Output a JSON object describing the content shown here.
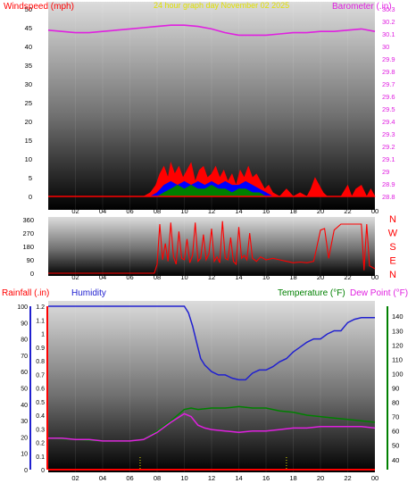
{
  "colors": {
    "wind_gust": "#ff0000",
    "wind_avg": "#0000ff",
    "wind_min": "#008000",
    "barometer": "#e020e0",
    "direction": "#ff0000",
    "rainfall": "#ff0000",
    "humidity": "#2020d0",
    "temperature": "#008000",
    "dew_point": "#e020e0",
    "rain_marks": "#e0e000",
    "top_label_red": "#ff0000",
    "title_yellow": "#e0e000"
  },
  "chart_data": [
    {
      "type": "area",
      "title": "24 hour graph day  November 02 2025",
      "ylabel_left": "Windspeed (mph)",
      "ylabel_right": "Barometer (.in)",
      "x_ticks": [
        "02",
        "04",
        "06",
        "08",
        "10",
        "12",
        "14",
        "16",
        "18",
        "20",
        "22",
        "00"
      ],
      "x_range_hours": [
        0,
        24
      ],
      "y_left_ticks": [
        "0",
        "5",
        "10",
        "15",
        "20",
        "25",
        "30",
        "35",
        "40",
        "45",
        "50"
      ],
      "ylim_left": [
        0,
        50
      ],
      "y_right_ticks": [
        "28.8",
        "28.9",
        "29",
        "29.1",
        "29.2",
        "29.3",
        "29.4",
        "29.5",
        "29.6",
        "29.7",
        "29.8",
        "29.9",
        "30",
        "30.1",
        "30.2",
        "30.3"
      ],
      "ylim_right": [
        28.8,
        30.3
      ],
      "series": [
        {
          "name": "Windspeed",
          "role": "gust",
          "hours": [
            0,
            7,
            7.5,
            7.9,
            8.2,
            8.5,
            8.8,
            9,
            9.3,
            9.6,
            9.9,
            10.2,
            10.5,
            10.8,
            11.1,
            11.4,
            11.7,
            12,
            12.3,
            12.6,
            12.9,
            13.2,
            13.5,
            13.8,
            14.1,
            14.4,
            14.7,
            15,
            15.3,
            15.6,
            15.9,
            16.2,
            16.5,
            17,
            17.5,
            18,
            18.5,
            19,
            19.3,
            19.6,
            19.9,
            20.2,
            20.5,
            21,
            21.5,
            22,
            22.3,
            22.6,
            23,
            23.4,
            23.7,
            24
          ],
          "values": [
            0,
            0,
            1,
            3,
            6,
            8,
            5,
            9,
            6,
            8,
            5,
            7,
            9,
            4,
            7,
            8,
            5,
            6,
            8,
            5,
            7,
            4,
            6,
            3,
            7,
            5,
            8,
            5,
            6,
            4,
            2,
            3,
            1,
            0,
            2,
            0,
            1,
            0,
            2,
            5,
            3,
            1,
            0,
            0,
            0,
            3,
            0,
            2,
            3,
            0,
            2,
            0
          ]
        },
        {
          "name": "Windspeed",
          "role": "average",
          "hours": [
            0,
            7.5,
            8,
            8.5,
            9,
            9.5,
            10,
            10.5,
            11,
            11.5,
            12,
            12.5,
            13,
            13.5,
            14,
            14.5,
            15,
            15.5,
            16,
            16.5,
            17,
            24
          ],
          "values": [
            0,
            0,
            1,
            3,
            4,
            3,
            4,
            3,
            4,
            3,
            4,
            3,
            4,
            3,
            3,
            4,
            3,
            2,
            1,
            0,
            0,
            0
          ]
        },
        {
          "name": "Windspeed",
          "role": "minimum",
          "hours": [
            0,
            8,
            8.5,
            9,
            9.5,
            10,
            10.5,
            11,
            11.5,
            12,
            12.5,
            13,
            13.5,
            14,
            14.5,
            15,
            15.5,
            16,
            16.5,
            24
          ],
          "values": [
            0,
            0,
            1,
            2,
            3,
            2,
            3,
            2,
            2,
            3,
            2,
            2,
            1,
            2,
            2,
            1,
            1,
            0,
            0,
            0
          ]
        },
        {
          "name": "Barometer",
          "axis": "right",
          "hours": [
            0,
            1,
            2,
            3,
            4,
            5,
            6,
            7,
            8,
            9,
            10,
            11,
            12,
            13,
            14,
            15,
            16,
            17,
            18,
            19,
            20,
            21,
            22,
            23,
            24
          ],
          "values": [
            30.13,
            30.12,
            30.11,
            30.11,
            30.12,
            30.13,
            30.14,
            30.15,
            30.16,
            30.17,
            30.17,
            30.16,
            30.14,
            30.11,
            30.09,
            30.09,
            30.09,
            30.1,
            30.11,
            30.11,
            30.12,
            30.12,
            30.13,
            30.14,
            30.12
          ]
        }
      ]
    },
    {
      "type": "line",
      "ylabel_right": "N W S E N",
      "direction_letters": [
        "N",
        "W",
        "S",
        "E",
        "N"
      ],
      "y_ticks": [
        "0",
        "90",
        "180",
        "270",
        "360"
      ],
      "ylim": [
        0,
        360
      ],
      "x_ticks": [
        "02",
        "04",
        "06",
        "08",
        "10",
        "12",
        "14",
        "16",
        "18",
        "20",
        "22",
        "00"
      ],
      "series": [
        {
          "name": "Wind direction",
          "hours": [
            0,
            7.8,
            8,
            8.2,
            8.4,
            8.6,
            8.8,
            9,
            9.2,
            9.4,
            9.6,
            9.8,
            10,
            10.2,
            10.4,
            10.6,
            10.8,
            11,
            11.2,
            11.4,
            11.6,
            11.8,
            12,
            12.2,
            12.4,
            12.6,
            12.8,
            13,
            13.2,
            13.4,
            13.6,
            13.8,
            14,
            14.2,
            14.4,
            14.6,
            14.8,
            15,
            15.3,
            15.6,
            16,
            16.5,
            17,
            17.5,
            18,
            18.5,
            19,
            19.5,
            20,
            20.3,
            20.6,
            21,
            21.5,
            22,
            22.5,
            23,
            23.2,
            23.4,
            23.6,
            24
          ],
          "values": [
            0,
            0,
            60,
            330,
            90,
            200,
            80,
            340,
            110,
            60,
            280,
            100,
            90,
            230,
            70,
            120,
            340,
            80,
            100,
            260,
            90,
            130,
            300,
            80,
            110,
            70,
            350,
            100,
            90,
            240,
            80,
            60,
            310,
            100,
            120,
            90,
            270,
            100,
            80,
            110,
            90,
            100,
            90,
            80,
            70,
            75,
            70,
            80,
            290,
            300,
            100,
            290,
            330,
            330,
            330,
            330,
            20,
            330,
            50,
            30
          ]
        }
      ]
    },
    {
      "type": "line",
      "ylabel_left": "Rainfall (.in)",
      "ylabel_humidity": "Humidity",
      "ylabel_right": "Temperature (°F)",
      "ylabel_right2": "Dew Point (°F)",
      "x_ticks": [
        "02",
        "04",
        "06",
        "08",
        "10",
        "12",
        "14",
        "16",
        "18",
        "20",
        "22",
        "00"
      ],
      "humidity_ticks": [
        "0",
        "10",
        "20",
        "30",
        "40",
        "50",
        "60",
        "70",
        "80",
        "90",
        "100"
      ],
      "ylim_humidity": [
        0,
        100
      ],
      "rain_ticks": [
        "0",
        "0.1",
        "0.2",
        "0.3",
        "0.4",
        "0.5",
        "0.6",
        "0.7",
        "0.8",
        "0.9",
        "1",
        "1.1",
        "1.2"
      ],
      "ylim_rain": [
        0,
        1.2
      ],
      "temp_ticks": [
        "40",
        "50",
        "60",
        "70",
        "80",
        "90",
        "100",
        "110",
        "120",
        "130",
        "140"
      ],
      "ylim_temp": [
        33,
        147
      ],
      "rain_markers_hours": [
        6.75,
        17.5
      ],
      "series": [
        {
          "name": "Humidity",
          "axis": "humidity",
          "hours": [
            0,
            2,
            4,
            6,
            8,
            9,
            10,
            10.3,
            10.6,
            10.9,
            11.2,
            11.5,
            12,
            12.5,
            13,
            13.5,
            14,
            14.5,
            15,
            15.5,
            16,
            16.5,
            17,
            17.5,
            18,
            18.5,
            19,
            19.5,
            20,
            20.5,
            21,
            21.5,
            22,
            22.5,
            23,
            23.5,
            24
          ],
          "values": [
            100,
            100,
            100,
            100,
            100,
            100,
            100,
            96,
            88,
            78,
            68,
            64,
            60,
            58,
            58,
            56,
            55,
            55,
            59,
            61,
            61,
            63,
            66,
            68,
            72,
            75,
            78,
            80,
            80,
            83,
            85,
            85,
            90,
            92,
            93,
            93,
            93
          ]
        },
        {
          "name": "Rainfall",
          "axis": "rain",
          "hours": [
            0,
            24
          ],
          "values": [
            0,
            0
          ]
        },
        {
          "name": "Temperature",
          "axis": "temp",
          "hours": [
            0,
            2,
            4,
            6,
            7,
            8,
            9,
            10,
            10.5,
            11,
            12,
            13,
            14,
            15,
            16,
            17,
            18,
            19,
            20,
            21,
            22,
            23,
            24
          ],
          "values": [
            55,
            54,
            53,
            53,
            54,
            60,
            67,
            75,
            76,
            75,
            76,
            76,
            77,
            76,
            76,
            74,
            73,
            71,
            70,
            69,
            68,
            67,
            66
          ]
        },
        {
          "name": "Dew Point",
          "axis": "temp",
          "hours": [
            0,
            1,
            2,
            3,
            4,
            5,
            6,
            7,
            8,
            9,
            10,
            10.5,
            11,
            11.5,
            12,
            13,
            14,
            15,
            16,
            17,
            18,
            19,
            20,
            21,
            22,
            23,
            24
          ],
          "values": [
            55,
            55,
            54,
            54,
            53,
            53,
            53,
            54,
            59,
            66,
            72,
            70,
            64,
            62,
            61,
            60,
            59,
            60,
            60,
            61,
            62,
            62,
            63,
            63,
            63,
            63,
            62
          ]
        }
      ]
    }
  ]
}
